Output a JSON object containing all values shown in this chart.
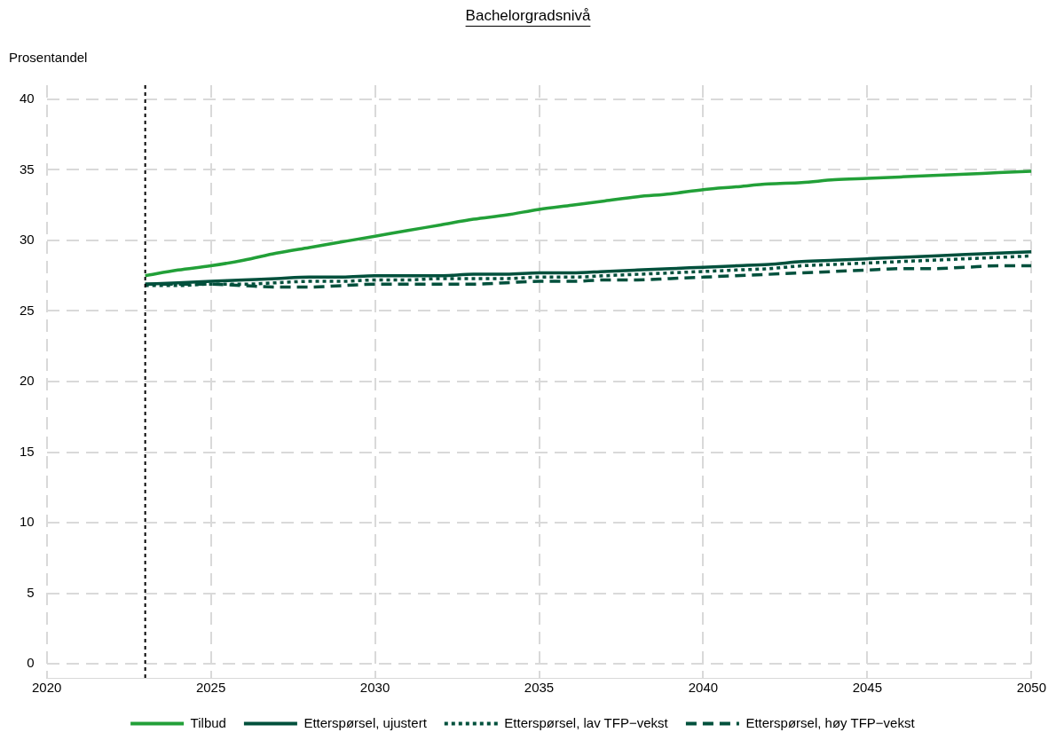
{
  "chart_data": {
    "type": "line",
    "title": "Bachelorgradsnivå",
    "ylabel": "Prosentandel",
    "x": [
      2023,
      2024,
      2025,
      2026,
      2027,
      2028,
      2029,
      2030,
      2031,
      2032,
      2033,
      2034,
      2035,
      2036,
      2037,
      2038,
      2039,
      2040,
      2041,
      2042,
      2043,
      2044,
      2045,
      2046,
      2047,
      2048,
      2049,
      2050
    ],
    "series": [
      {
        "name": "Tilbud",
        "color": "#22a038",
        "line_style": "solid",
        "values": [
          27.5,
          27.9,
          28.2,
          28.6,
          29.1,
          29.5,
          29.9,
          30.3,
          30.7,
          31.1,
          31.5,
          31.8,
          32.2,
          32.5,
          32.8,
          33.1,
          33.3,
          33.6,
          33.8,
          34.0,
          34.1,
          34.3,
          34.4,
          34.5,
          34.6,
          34.7,
          34.8,
          34.9
        ]
      },
      {
        "name": "Etterspørsel, ujustert",
        "color": "#00503c",
        "line_style": "solid",
        "values": [
          26.9,
          27.0,
          27.1,
          27.2,
          27.3,
          27.4,
          27.4,
          27.5,
          27.5,
          27.5,
          27.6,
          27.6,
          27.7,
          27.7,
          27.8,
          27.9,
          28.0,
          28.1,
          28.2,
          28.3,
          28.5,
          28.6,
          28.7,
          28.8,
          28.9,
          29.0,
          29.1,
          29.2
        ]
      },
      {
        "name": "Etterspørsel, lav TFP−vekst",
        "color": "#00503c",
        "line_style": "dotted",
        "values": [
          26.8,
          26.8,
          26.9,
          26.9,
          27.0,
          27.1,
          27.1,
          27.2,
          27.2,
          27.3,
          27.3,
          27.3,
          27.4,
          27.4,
          27.5,
          27.6,
          27.7,
          27.8,
          27.9,
          28.0,
          28.2,
          28.3,
          28.4,
          28.5,
          28.6,
          28.7,
          28.8,
          28.9
        ]
      },
      {
        "name": "Etterspørsel, høy TFP−vekst",
        "color": "#00503c",
        "line_style": "dashed",
        "values": [
          26.9,
          26.9,
          26.9,
          26.8,
          26.7,
          26.7,
          26.8,
          26.9,
          26.9,
          26.9,
          26.9,
          27.0,
          27.1,
          27.1,
          27.2,
          27.2,
          27.3,
          27.4,
          27.5,
          27.6,
          27.7,
          27.8,
          27.9,
          28.0,
          28.0,
          28.1,
          28.2,
          28.2
        ]
      }
    ],
    "xlim": [
      2020,
      2050
    ],
    "xticks": [
      2020,
      2025,
      2030,
      2035,
      2040,
      2045,
      2050
    ],
    "ylim": [
      -1,
      41
    ],
    "yticks": [
      0,
      5,
      10,
      15,
      20,
      25,
      30,
      35,
      40
    ],
    "ref_lines": [
      {
        "axis": "x",
        "value": 2023,
        "color": "#000000",
        "line_style": "dotted"
      }
    ],
    "grid": true,
    "legend": "bottom",
    "marker": "none"
  }
}
